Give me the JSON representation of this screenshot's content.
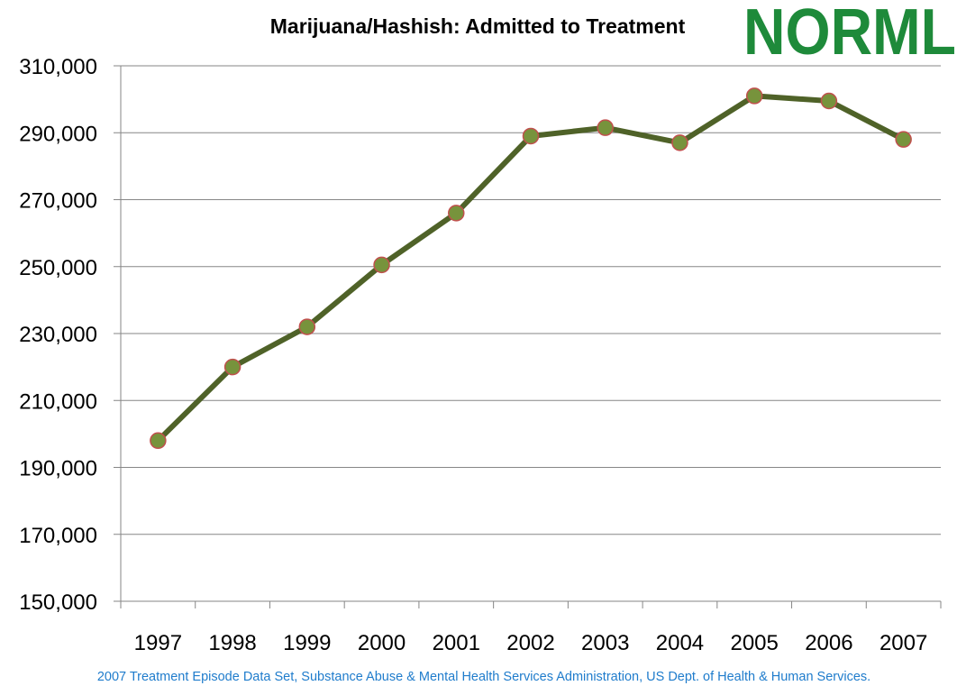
{
  "colors": {
    "line": "#4f6228",
    "marker_fill": "#77933c",
    "marker_stroke": "#c0504d",
    "grid": "#868686",
    "axis": "#868686",
    "source_text": "#1f7ccc",
    "logo_green": "#1e8a3a"
  },
  "logo": {
    "text": "NORML"
  },
  "source": "2007 Treatment Episode Data Set, Substance Abuse & Mental Health Services Administration, US Dept. of Health & Human Services.",
  "chart_data": {
    "type": "line",
    "title": "Marijuana/Hashish: Admitted to Treatment",
    "xlabel": "",
    "ylabel": "",
    "categories": [
      "1997",
      "1998",
      "1999",
      "2000",
      "2001",
      "2002",
      "2003",
      "2004",
      "2005",
      "2006",
      "2007"
    ],
    "series": [
      {
        "values": [
          198000,
          220000,
          232000,
          250500,
          266000,
          289000,
          291500,
          287000,
          301000,
          299500,
          288000
        ]
      }
    ],
    "ylim": [
      150000,
      310000
    ],
    "yticks": [
      150000,
      170000,
      190000,
      210000,
      230000,
      250000,
      270000,
      290000,
      310000
    ],
    "ytick_labels": [
      "150,000",
      "170,000",
      "190,000",
      "210,000",
      "230,000",
      "250,000",
      "270,000",
      "290,000",
      "310,000"
    ],
    "grid": "horizontal",
    "legend": "none"
  }
}
